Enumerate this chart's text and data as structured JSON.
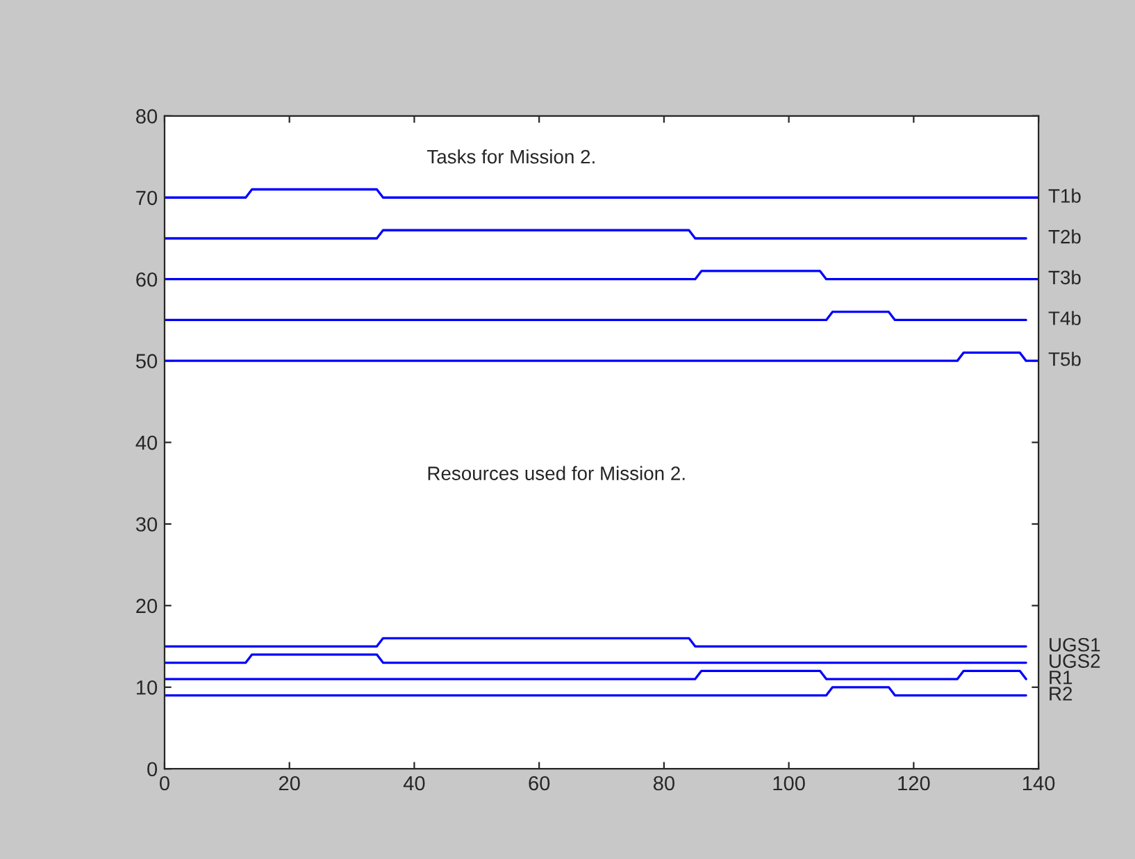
{
  "chart_data": {
    "type": "line",
    "annotations": [
      "Tasks for Mission 2.",
      "Resources used for Mission 2."
    ],
    "xlim": [
      0,
      140
    ],
    "xticks": [
      0,
      20,
      40,
      60,
      80,
      100,
      120,
      140
    ],
    "ylim": [
      0,
      80
    ],
    "yticks": [
      0,
      10,
      20,
      30,
      40,
      50,
      60,
      70,
      80
    ],
    "grid": false,
    "legend": false,
    "marker": "none",
    "line_style": "solid",
    "series": [
      {
        "name": "T1b",
        "color": "#0000ff",
        "x": [
          0,
          13,
          14,
          34,
          35,
          140
        ],
        "values": [
          70,
          70,
          71,
          71,
          70,
          70
        ]
      },
      {
        "name": "T2b",
        "color": "#0000ff",
        "x": [
          0,
          34,
          35,
          84,
          85,
          138
        ],
        "values": [
          65,
          65,
          66,
          66,
          65,
          65
        ]
      },
      {
        "name": "T3b",
        "color": "#0000ff",
        "x": [
          0,
          85,
          86,
          105,
          106,
          140
        ],
        "values": [
          60,
          60,
          61,
          61,
          60,
          60
        ]
      },
      {
        "name": "T4b",
        "color": "#0000ff",
        "x": [
          0,
          106,
          107,
          116,
          117,
          138
        ],
        "values": [
          55,
          55,
          56,
          56,
          55,
          55
        ]
      },
      {
        "name": "T5b",
        "color": "#0000ff",
        "x": [
          0,
          127,
          128,
          137,
          138,
          140
        ],
        "values": [
          50,
          50,
          51,
          51,
          50,
          50
        ]
      },
      {
        "name": "UGS1",
        "color": "#0000ff",
        "x": [
          0,
          34,
          35,
          84,
          85,
          138
        ],
        "values": [
          15,
          15,
          16,
          16,
          15,
          15
        ]
      },
      {
        "name": "UGS2",
        "color": "#0000ff",
        "x": [
          0,
          13,
          14,
          34,
          35,
          138
        ],
        "values": [
          13,
          13,
          14,
          14,
          13,
          13
        ]
      },
      {
        "name": "R1",
        "color": "#0000ff",
        "x": [
          0,
          85,
          86,
          105,
          106,
          127,
          128,
          137,
          138,
          138
        ],
        "values": [
          11,
          11,
          12,
          12,
          11,
          11,
          12,
          12,
          11,
          11
        ]
      },
      {
        "name": "R2",
        "color": "#0000ff",
        "x": [
          0,
          106,
          107,
          116,
          117,
          138
        ],
        "values": [
          9,
          9,
          10,
          10,
          9,
          9
        ]
      }
    ]
  }
}
